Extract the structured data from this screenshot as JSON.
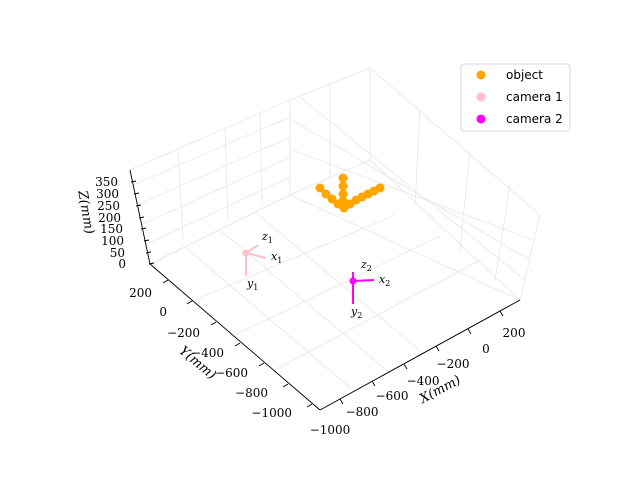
{
  "chart_data": {
    "type": "scatter",
    "projection": "3d",
    "grid": true,
    "legend_position": "top-right",
    "xlabel": "X(mm)",
    "ylabel": "Y(mm)",
    "zlabel": "Z(mm)",
    "x_ticks": [
      "−800",
      "−600",
      "−400",
      "−200",
      "0",
      "200"
    ],
    "y_ticks": [
      "200",
      "0",
      "−200",
      "−400",
      "−600",
      "−800",
      "−1000"
    ],
    "x_ticks_extra": "−1000",
    "z_ticks": [
      "0",
      "50",
      "100",
      "150",
      "200",
      "250",
      "300",
      "350"
    ],
    "series": [
      {
        "name": "object",
        "color": "#ffa500"
      },
      {
        "name": "camera 1",
        "color": "#ffc0cb"
      },
      {
        "name": "camera 2",
        "color": "#ff00ff"
      }
    ],
    "frames": [
      {
        "x": "x",
        "y": "y",
        "z": "z",
        "index": "1",
        "color": "#ffc0cb"
      },
      {
        "x": "x",
        "y": "y",
        "z": "z",
        "index": "2",
        "color": "#ff00ff"
      }
    ]
  }
}
